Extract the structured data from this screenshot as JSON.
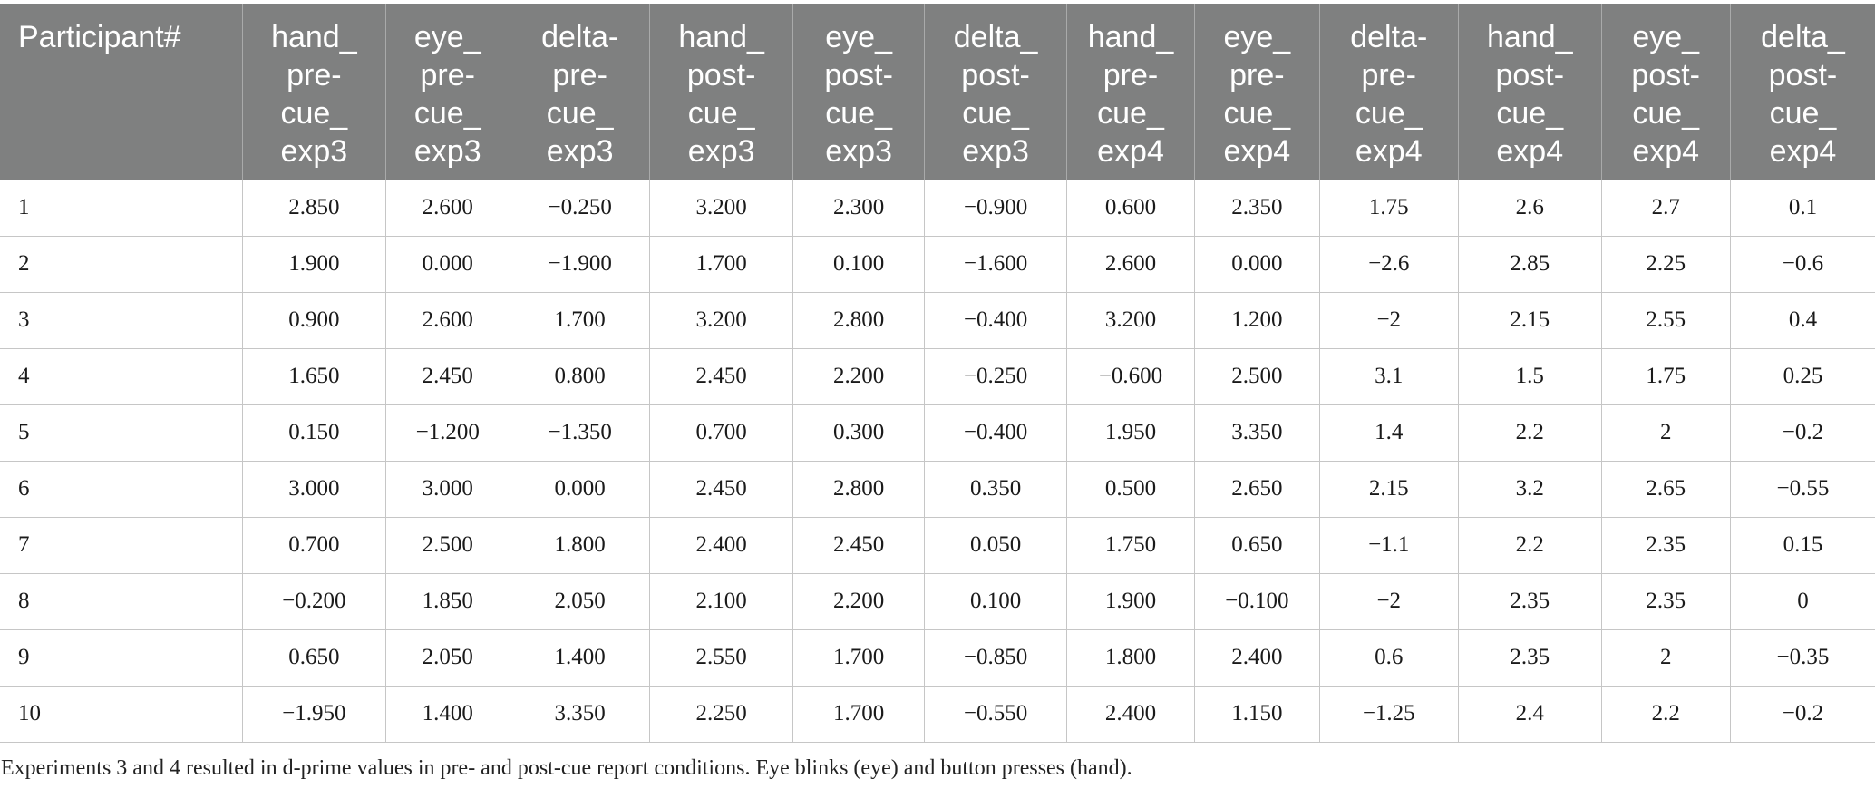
{
  "table": {
    "headers": [
      "Participant#",
      "hand_ pre- cue_ exp3",
      "eye_ pre- cue_ exp3",
      "delta- pre- cue_ exp3",
      "hand_ post- cue_ exp3",
      "eye_ post- cue_ exp3",
      "delta_ post- cue_ exp3",
      "hand_ pre- cue_ exp4",
      "eye_ pre- cue_ exp4",
      "delta- pre- cue_ exp4",
      "hand_ post- cue_ exp4",
      "eye_ post- cue_ exp4",
      "delta_ post- cue_ exp4"
    ],
    "rows": [
      [
        "1",
        "2.850",
        "2.600",
        "−0.250",
        "3.200",
        "2.300",
        "−0.900",
        "0.600",
        "2.350",
        "1.75",
        "2.6",
        "2.7",
        "0.1"
      ],
      [
        "2",
        "1.900",
        "0.000",
        "−1.900",
        "1.700",
        "0.100",
        "−1.600",
        "2.600",
        "0.000",
        "−2.6",
        "2.85",
        "2.25",
        "−0.6"
      ],
      [
        "3",
        "0.900",
        "2.600",
        "1.700",
        "3.200",
        "2.800",
        "−0.400",
        "3.200",
        "1.200",
        "−2",
        "2.15",
        "2.55",
        "0.4"
      ],
      [
        "4",
        "1.650",
        "2.450",
        "0.800",
        "2.450",
        "2.200",
        "−0.250",
        "−0.600",
        "2.500",
        "3.1",
        "1.5",
        "1.75",
        "0.25"
      ],
      [
        "5",
        "0.150",
        "−1.200",
        "−1.350",
        "0.700",
        "0.300",
        "−0.400",
        "1.950",
        "3.350",
        "1.4",
        "2.2",
        "2",
        "−0.2"
      ],
      [
        "6",
        "3.000",
        "3.000",
        "0.000",
        "2.450",
        "2.800",
        "0.350",
        "0.500",
        "2.650",
        "2.15",
        "3.2",
        "2.65",
        "−0.55"
      ],
      [
        "7",
        "0.700",
        "2.500",
        "1.800",
        "2.400",
        "2.450",
        "0.050",
        "1.750",
        "0.650",
        "−1.1",
        "2.2",
        "2.35",
        "0.15"
      ],
      [
        "8",
        "−0.200",
        "1.850",
        "2.050",
        "2.100",
        "2.200",
        "0.100",
        "1.900",
        "−0.100",
        "−2",
        "2.35",
        "2.35",
        "0"
      ],
      [
        "9",
        "0.650",
        "2.050",
        "1.400",
        "2.550",
        "1.700",
        "−0.850",
        "1.800",
        "2.400",
        "0.6",
        "2.35",
        "2",
        "−0.35"
      ],
      [
        "10",
        "−1.950",
        "1.400",
        "3.350",
        "2.250",
        "1.700",
        "−0.550",
        "2.400",
        "1.150",
        "−1.25",
        "2.4",
        "2.2",
        "−0.2"
      ]
    ]
  },
  "caption": "Experiments 3 and 4 resulted in d-prime values in pre- and post-cue report conditions. Eye blinks (eye) and button presses (hand).",
  "colors": {
    "header_bg": "#7f8080",
    "header_text": "#ffffff",
    "grid_line": "#c6c6c6"
  }
}
